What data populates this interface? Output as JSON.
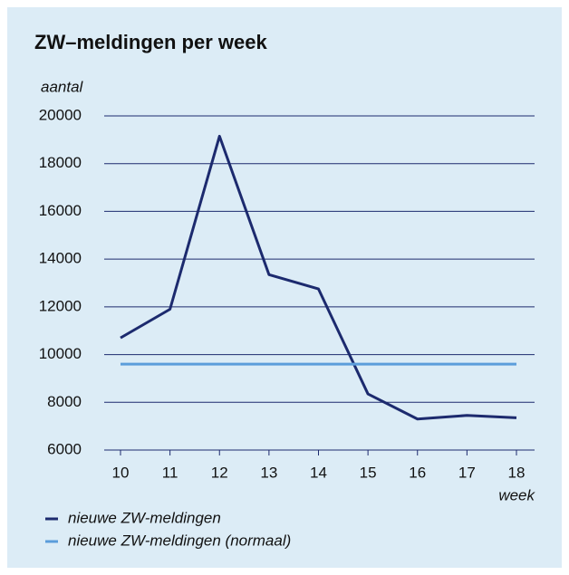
{
  "chart_data": {
    "type": "line",
    "title": "ZW–meldingen per week",
    "ylabel": "aantal",
    "xlabel": "week",
    "x": [
      10,
      11,
      12,
      13,
      14,
      15,
      16,
      17,
      18
    ],
    "series": [
      {
        "name": "nieuwe ZW-meldingen",
        "color": "#1c2a6e",
        "values": [
          10700,
          11900,
          19150,
          13350,
          12750,
          8350,
          7300,
          7450,
          7350
        ]
      },
      {
        "name": "nieuwe ZW-meldingen (normaal)",
        "color": "#5b9ddb",
        "values": [
          9600,
          9600,
          9600,
          9600,
          9600,
          9600,
          9600,
          9600,
          9600
        ]
      }
    ],
    "xlim": [
      10,
      18
    ],
    "xticks": [
      10,
      11,
      12,
      13,
      14,
      15,
      16,
      17,
      18
    ],
    "ylim": [
      6000,
      20000
    ],
    "yticks": [
      6000,
      8000,
      10000,
      12000,
      14000,
      16000,
      18000,
      20000
    ],
    "grid": true
  }
}
